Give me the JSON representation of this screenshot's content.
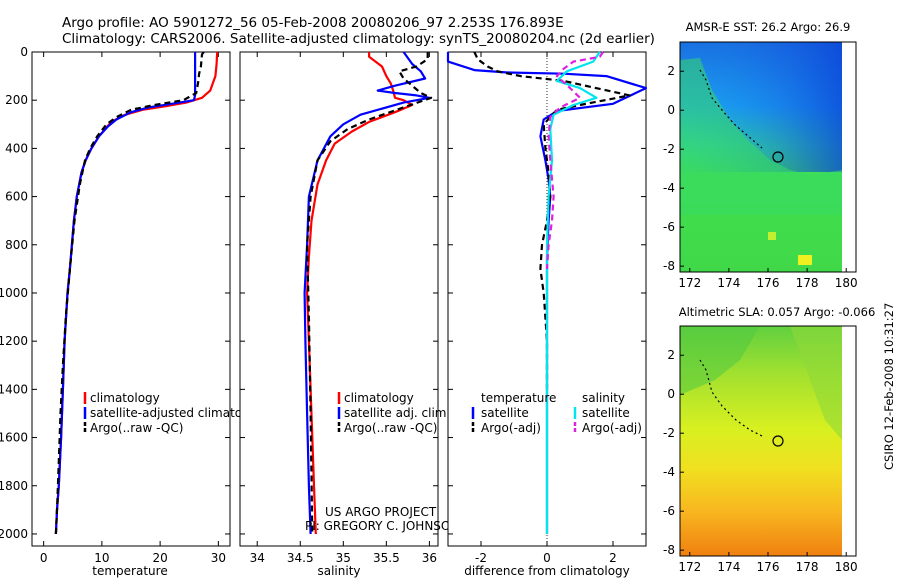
{
  "figure": {
    "title_line1": "Argo profile: AO 5901272_56 05-Feb-2008 20080206_97 2.253S 176.893E",
    "title_line2": "Climatology: CARS2006. Satellite-adjusted climatology: synTS_20080204.nc (2d earlier)",
    "credit_line1": "US ARGO PROJECT",
    "credit_line2": "PI: GREGORY C. JOHNSON",
    "side_stamp": "CSIRO 12-Feb-2008 10:31:27"
  },
  "colors": {
    "climatology": "#ff0000",
    "satellite": "#0000ff",
    "argo": "#000000",
    "satellite_sal": "#00e5ee",
    "argo_sal": "#e020e0"
  },
  "chart_data": [
    {
      "type": "line",
      "name": "temperature-profile",
      "xlabel": "temperature",
      "xlim": [
        -2,
        32
      ],
      "ylim": [
        2050,
        0
      ],
      "xticks": [
        0,
        10,
        20,
        30
      ],
      "yticks": [
        0,
        200,
        400,
        600,
        800,
        1000,
        1200,
        1400,
        1600,
        1800,
        2000
      ],
      "legend": [
        "climatology",
        "satellite-adjusted climatology",
        "Argo(..raw -QC)"
      ],
      "series": [
        {
          "name": "climatology",
          "color": "red",
          "dash": "",
          "x": [
            29.8,
            29.7,
            29.5,
            28.6,
            27.2,
            24.5,
            21,
            17,
            14,
            11.6,
            9.5,
            8.2,
            7.2,
            6.5,
            5.7,
            5.2,
            4.5,
            4.1,
            3.6,
            3.3,
            3.0,
            2.6,
            2.3,
            2.1
          ],
          "y": [
            0,
            50,
            100,
            160,
            190,
            210,
            225,
            240,
            260,
            290,
            350,
            400,
            450,
            500,
            600,
            700,
            900,
            1000,
            1200,
            1400,
            1600,
            1800,
            1900,
            2000
          ]
        },
        {
          "name": "satellite-adjusted climatology",
          "color": "blue",
          "dash": "",
          "x": [
            26,
            26,
            26,
            25.8,
            22,
            18,
            15,
            12.5,
            11,
            9.5,
            8.2,
            7.2,
            6.5,
            5.7,
            5.2,
            4.5,
            4.1,
            3.6,
            3.3,
            3.0,
            2.6,
            2.3,
            2.1
          ],
          "y": [
            0,
            100,
            180,
            200,
            215,
            230,
            250,
            280,
            310,
            350,
            400,
            450,
            500,
            600,
            700,
            900,
            1000,
            1200,
            1400,
            1600,
            1800,
            1900,
            2000
          ]
        },
        {
          "name": "Argo(..raw -QC)",
          "color": "black",
          "dash": "6,4",
          "x": [
            27.5,
            27.2,
            27,
            26.7,
            26.5,
            26.2,
            24,
            19,
            15,
            12.5,
            10.8,
            9.2,
            8,
            7.1,
            6.2,
            5.3,
            4.5,
            3.8,
            3.3,
            2.9,
            2.6,
            2.3,
            2.1
          ],
          "y": [
            0,
            10,
            60,
            90,
            130,
            170,
            200,
            220,
            240,
            270,
            300,
            350,
            400,
            450,
            550,
            700,
            900,
            1100,
            1300,
            1500,
            1700,
            1900,
            2000
          ]
        }
      ]
    },
    {
      "type": "line",
      "name": "salinity-profile",
      "xlabel": "salinity",
      "xlim": [
        33.8,
        36.1
      ],
      "ylim": [
        2050,
        0
      ],
      "xticks": [
        34,
        34.5,
        35,
        35.5,
        36
      ],
      "legend": [
        "climatology",
        "satellite adj. clim.",
        "Argo(..raw -QC)"
      ],
      "series": [
        {
          "name": "climatology",
          "color": "red",
          "dash": "",
          "x": [
            35.3,
            35.3,
            35.45,
            35.5,
            35.55,
            35.58,
            35.6,
            35.7,
            35.8,
            35.6,
            35.3,
            35.1,
            34.9,
            34.8,
            34.7,
            34.63,
            34.6,
            34.58,
            34.6,
            34.62,
            34.64,
            34.66,
            34.68
          ],
          "y": [
            0,
            20,
            60,
            100,
            130,
            160,
            190,
            200,
            220,
            250,
            290,
            330,
            380,
            450,
            550,
            700,
            850,
            1000,
            1200,
            1400,
            1600,
            1800,
            2000
          ]
        },
        {
          "name": "satellite adj. clim.",
          "color": "blue",
          "dash": "",
          "x": [
            35.7,
            35.8,
            35.9,
            35.95,
            35.6,
            35.4,
            35.6,
            35.85,
            36.0,
            35.7,
            35.2,
            35.0,
            34.85,
            34.7,
            34.6,
            34.58,
            34.55,
            34.56,
            34.58,
            34.6,
            34.62
          ],
          "y": [
            0,
            50,
            80,
            110,
            140,
            160,
            170,
            180,
            190,
            210,
            260,
            300,
            350,
            450,
            600,
            800,
            1000,
            1200,
            1500,
            1800,
            2000
          ]
        },
        {
          "name": "Argo(..raw -QC)",
          "color": "black",
          "dash": "6,4",
          "x": [
            35.98,
            35.98,
            35.85,
            35.65,
            35.7,
            35.8,
            35.9,
            36.02,
            35.7,
            35.3,
            35.05,
            34.85,
            34.7,
            34.62,
            34.58,
            34.6,
            34.62,
            34.64
          ],
          "y": [
            0,
            30,
            60,
            80,
            110,
            140,
            170,
            190,
            230,
            280,
            320,
            370,
            450,
            600,
            800,
            1100,
            1500,
            2000
          ]
        }
      ]
    },
    {
      "type": "line",
      "name": "difference-profile",
      "xlabel": "difference from climatology",
      "xlim": [
        -3,
        3
      ],
      "ylim": [
        2050,
        0
      ],
      "xticks": [
        -2,
        0,
        2
      ],
      "legend": [
        "temperature",
        "satellite",
        "Argo(-adj)",
        "salinity",
        "satellite",
        "Argo(-adj)"
      ],
      "series": [
        {
          "name": "temperature satellite",
          "color": "blue",
          "dash": "",
          "x": [
            -3.0,
            -3.0,
            -2.2,
            -1.2,
            0.5,
            1.8,
            3.0,
            2.0,
            0.3,
            -0.1,
            -0.2,
            -0.05,
            0.05,
            0.1,
            0.05,
            0,
            0,
            0,
            0
          ],
          "y": [
            0,
            40,
            75,
            85,
            90,
            100,
            150,
            215,
            245,
            280,
            350,
            450,
            530,
            600,
            700,
            850,
            1200,
            1600,
            2000
          ]
        },
        {
          "name": "temperature Argo(-adj)",
          "color": "black",
          "dash": "6,4",
          "x": [
            -2.2,
            -2.1,
            -1.8,
            -1.5,
            -0.8,
            0.5,
            2.5,
            1.0,
            0.3,
            -0.1,
            -0.05,
            0.05,
            0.1,
            0,
            -0.15,
            -0.2,
            -0.1,
            0,
            0
          ],
          "y": [
            0,
            30,
            60,
            80,
            100,
            120,
            180,
            220,
            240,
            300,
            400,
            500,
            600,
            700,
            800,
            900,
            1000,
            1200,
            1400
          ]
        },
        {
          "name": "salinity satellite",
          "color": "cyan",
          "dash": "",
          "x": [
            1.6,
            1.4,
            0.6,
            0.3,
            1.0,
            1.5,
            0.8,
            0.2,
            0.1,
            0.15,
            0.05,
            0,
            0,
            0
          ],
          "y": [
            0,
            40,
            80,
            120,
            150,
            190,
            220,
            260,
            320,
            450,
            600,
            800,
            1200,
            2000
          ]
        },
        {
          "name": "salinity Argo(-adj)",
          "color": "magenta",
          "dash": "6,4",
          "x": [
            1.7,
            1.6,
            0.8,
            0.5,
            0.3,
            0.7,
            1.0,
            0.4,
            0.1,
            0.05,
            0.1,
            0.2,
            0.15,
            0.05,
            0
          ],
          "y": [
            0,
            20,
            40,
            70,
            100,
            150,
            190,
            230,
            270,
            350,
            450,
            600,
            700,
            800,
            900
          ]
        }
      ]
    },
    {
      "type": "heatmap",
      "name": "sst-map",
      "title": "AMSR-E SST: 26.2 Argo: 26.9",
      "xlim": [
        171.5,
        180.5
      ],
      "ylim": [
        -8.3,
        3.5
      ],
      "xticks": [
        172,
        174,
        176,
        178,
        180
      ],
      "yticks": [
        2,
        0,
        -2,
        -4,
        -6,
        -8
      ],
      "argo_position": {
        "lon": 176.893,
        "lat": -2.253
      }
    },
    {
      "type": "heatmap",
      "name": "sla-map",
      "title": "Altimetric SLA: 0.057 Argo: -0.066",
      "xlim": [
        171.5,
        180.5
      ],
      "ylim": [
        -8.3,
        3.5
      ],
      "xticks": [
        172,
        174,
        176,
        178,
        180
      ],
      "yticks": [
        2,
        0,
        -2,
        -4,
        -6,
        -8
      ],
      "argo_position": {
        "lon": 176.893,
        "lat": -2.253
      }
    }
  ]
}
